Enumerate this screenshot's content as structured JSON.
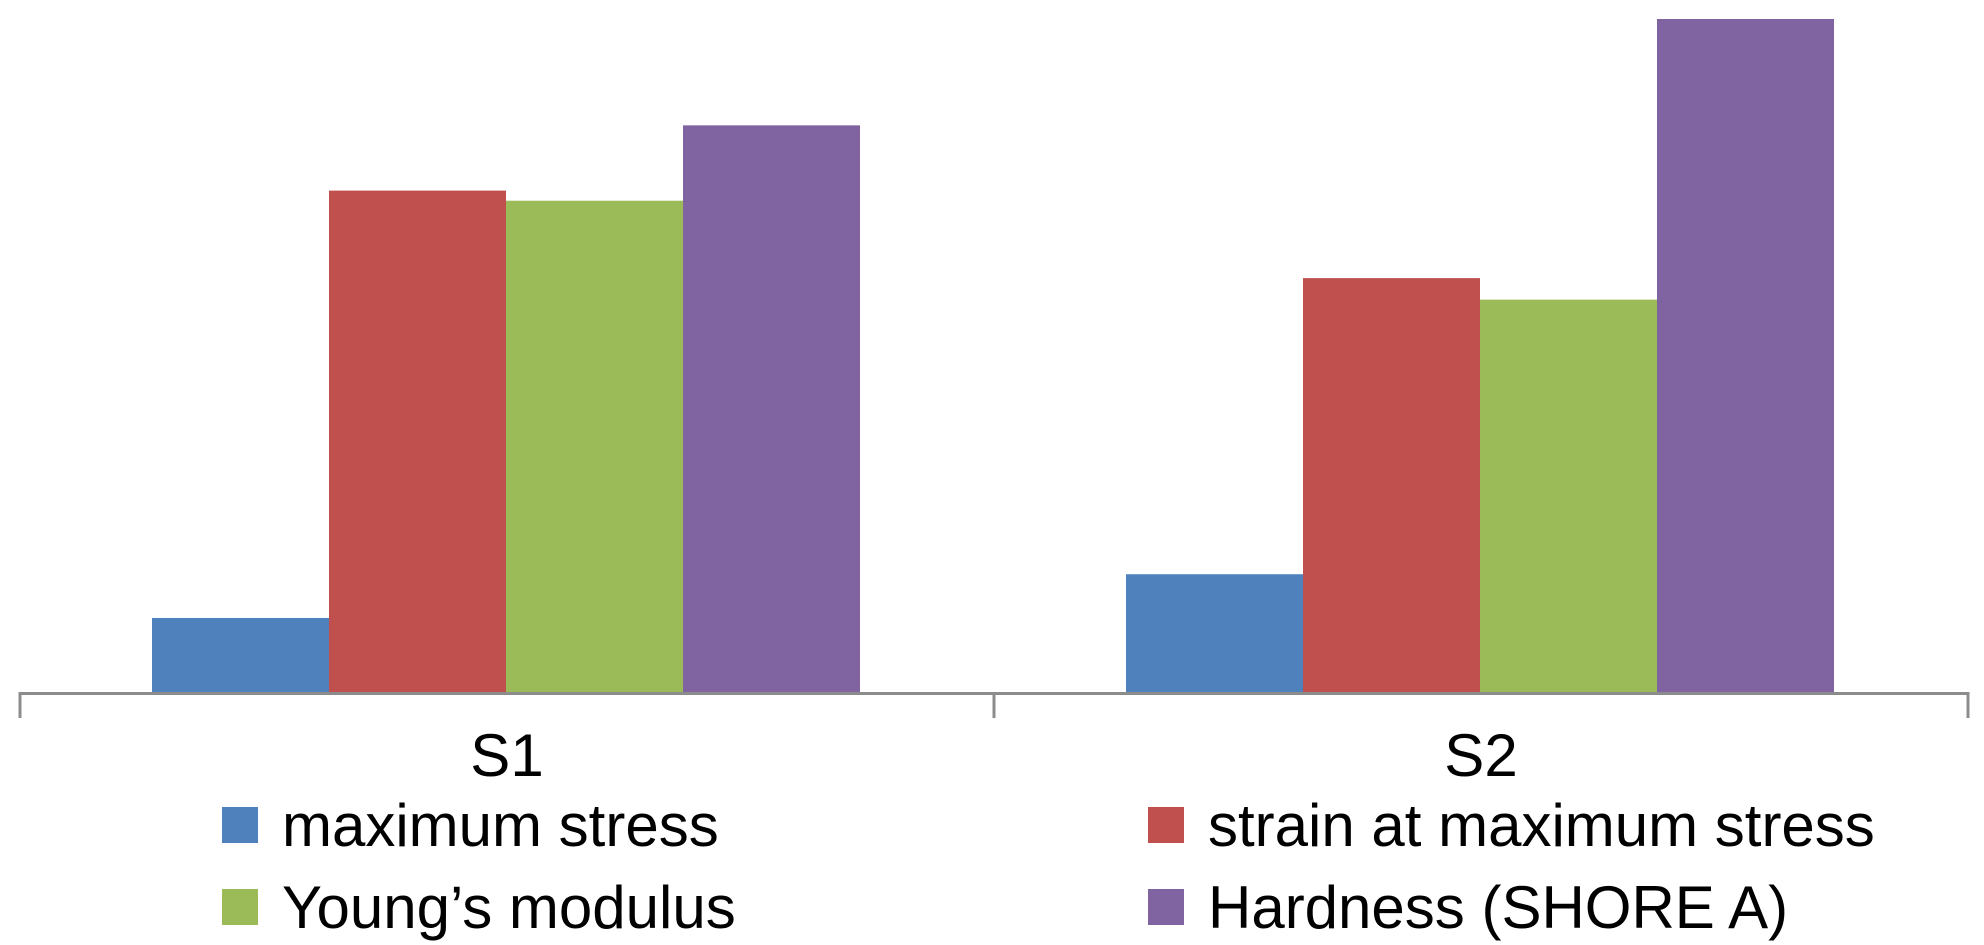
{
  "colors": {
    "axis": "#8c8c8c",
    "background": "#ffffff"
  },
  "chart_data": {
    "type": "bar",
    "categories": [
      "S1",
      "S2"
    ],
    "series": [
      {
        "name": "maximum stress",
        "color": "#4f81bd",
        "values": [
          11,
          17.5
        ]
      },
      {
        "name": "strain at maximum stress",
        "color": "#c0504d",
        "values": [
          74.5,
          61.5
        ]
      },
      {
        "name": "Young’s modulus",
        "color": "#9bbb59",
        "values": [
          73,
          58.3
        ]
      },
      {
        "name": "Hardness (SHORE A)",
        "color": "#8064a2",
        "values": [
          84.2,
          100
        ]
      }
    ],
    "ylim": [
      0,
      100
    ],
    "grid": false,
    "legend": "bottom"
  }
}
